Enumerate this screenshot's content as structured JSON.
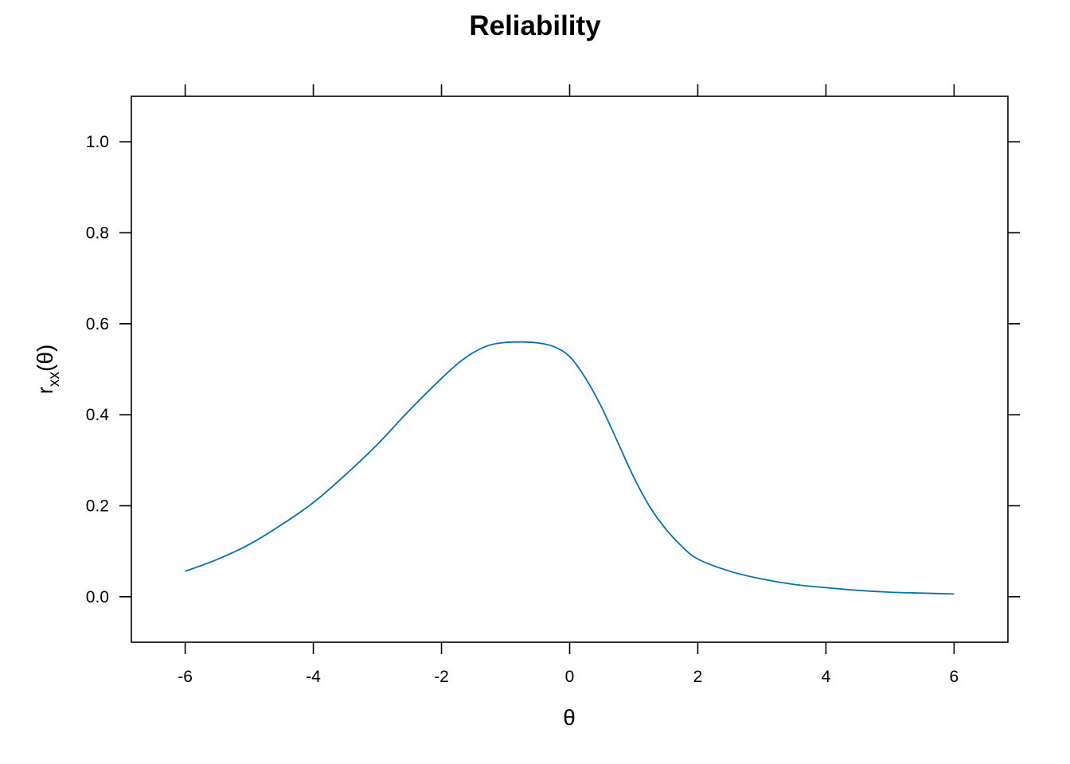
{
  "chart_data": {
    "type": "line",
    "title": "Reliability",
    "xlabel": "θ",
    "ylabel": {
      "main": "r",
      "sub": "xx",
      "suffix": "(θ)"
    },
    "xlim": [
      -6.84,
      6.84
    ],
    "ylim": [
      -0.1,
      1.1
    ],
    "xticks": [
      -6,
      -4,
      -2,
      0,
      2,
      4,
      6
    ],
    "xtick_labels": [
      "-6",
      "-4",
      "-2",
      "0",
      "2",
      "4",
      "6"
    ],
    "yticks": [
      0.0,
      0.2,
      0.4,
      0.6,
      0.8,
      1.0
    ],
    "ytick_labels": [
      "0.0",
      "0.2",
      "0.4",
      "0.6",
      "0.8",
      "1.0"
    ],
    "grid": false,
    "series": [
      {
        "color": "#0072B2",
        "x": [
          -6,
          -5.5,
          -5,
          -4.5,
          -4,
          -3.5,
          -3,
          -2.5,
          -2,
          -1.75,
          -1.5,
          -1.25,
          -1,
          -0.75,
          -0.5,
          -0.25,
          0,
          0.25,
          0.5,
          0.75,
          1,
          1.25,
          1.5,
          1.75,
          2,
          2.5,
          3,
          3.5,
          4,
          4.5,
          5,
          5.5,
          6
        ],
        "y": [
          0.056,
          0.082,
          0.115,
          0.158,
          0.207,
          0.268,
          0.335,
          0.41,
          0.48,
          0.512,
          0.537,
          0.553,
          0.559,
          0.56,
          0.558,
          0.55,
          0.528,
          0.48,
          0.416,
          0.34,
          0.263,
          0.198,
          0.149,
          0.111,
          0.083,
          0.056,
          0.039,
          0.027,
          0.02,
          0.014,
          0.01,
          0.008,
          0.006
        ]
      }
    ]
  }
}
